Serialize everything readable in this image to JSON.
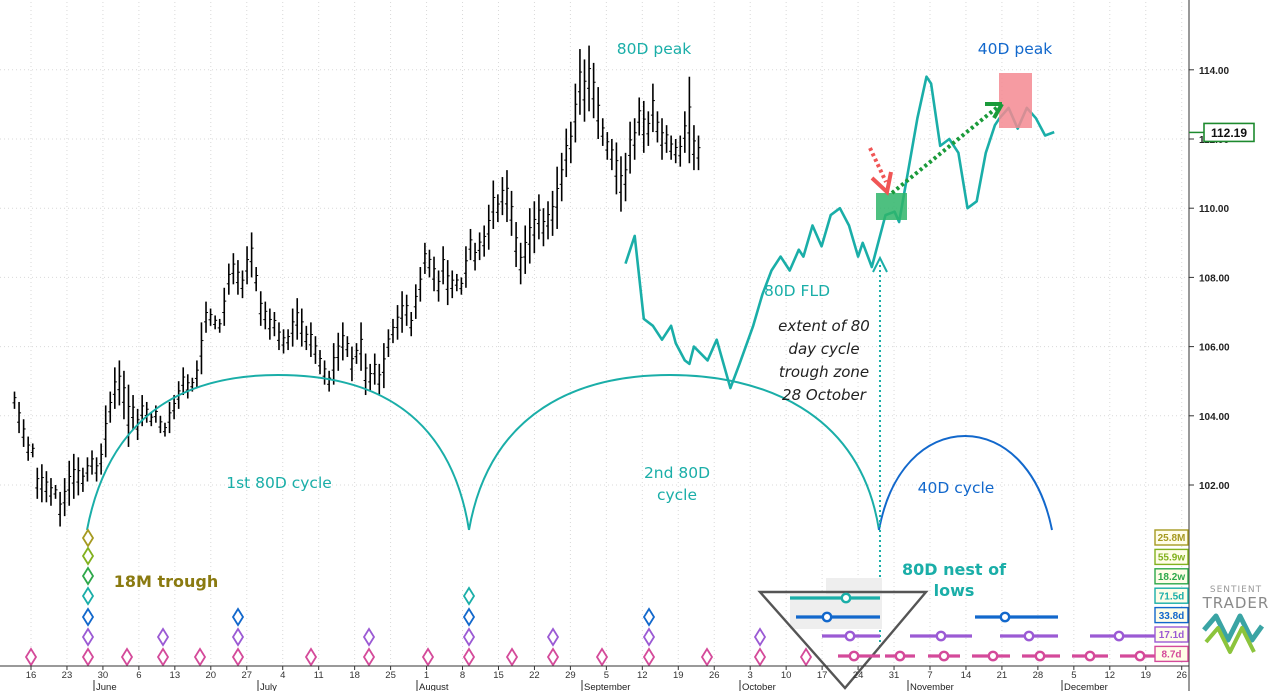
{
  "chart_data": {
    "type": "ohlc",
    "title": "",
    "xlabel": "",
    "ylabel": "",
    "ylim": [
      99,
      116
    ],
    "y_ticks": [
      "102.00",
      "104.00",
      "106.00",
      "108.00",
      "110.00",
      "112.00",
      "114.00"
    ],
    "last_price": "112.19",
    "date_ticks": [
      "16",
      "23",
      "30",
      "6",
      "13",
      "20",
      "27",
      "4",
      "11",
      "18",
      "25",
      "1",
      "8",
      "15",
      "22",
      "29",
      "5",
      "12",
      "19",
      "26",
      "3",
      "10",
      "17",
      "24",
      "31",
      "7",
      "14",
      "21",
      "28",
      "5",
      "12",
      "19",
      "26"
    ],
    "month_labels": [
      "June",
      "July",
      "August",
      "September",
      "October",
      "November",
      "December"
    ],
    "price_bars": [
      [
        104.7,
        104.2
      ],
      [
        104.4,
        103.5
      ],
      [
        103.9,
        103.1
      ],
      [
        103.4,
        102.7
      ],
      [
        103.2,
        102.8
      ],
      [
        102.5,
        101.6
      ],
      [
        102.6,
        101.5
      ],
      [
        102.4,
        101.5
      ],
      [
        102.2,
        101.4
      ],
      [
        102.0,
        101.6
      ],
      [
        101.8,
        100.8
      ],
      [
        102.2,
        101.1
      ],
      [
        102.7,
        101.4
      ],
      [
        102.9,
        101.6
      ],
      [
        102.8,
        101.7
      ],
      [
        102.5,
        101.8
      ],
      [
        102.8,
        102.1
      ],
      [
        103.0,
        102.3
      ],
      [
        102.8,
        102.1
      ],
      [
        103.2,
        102.3
      ],
      [
        104.3,
        102.8
      ],
      [
        104.7,
        103.8
      ],
      [
        105.4,
        104.2
      ],
      [
        105.6,
        104.3
      ],
      [
        105.3,
        103.9
      ],
      [
        104.9,
        103.1
      ],
      [
        104.6,
        103.6
      ],
      [
        104.2,
        103.3
      ],
      [
        104.6,
        103.7
      ],
      [
        104.4,
        103.8
      ],
      [
        104.1,
        103.7
      ],
      [
        104.3,
        103.8
      ],
      [
        104.0,
        103.5
      ],
      [
        103.8,
        103.4
      ],
      [
        104.4,
        103.5
      ],
      [
        104.6,
        103.9
      ],
      [
        105.0,
        104.2
      ],
      [
        105.4,
        104.6
      ],
      [
        105.2,
        104.5
      ],
      [
        105.1,
        104.7
      ],
      [
        105.6,
        104.8
      ],
      [
        106.7,
        105.2
      ],
      [
        107.3,
        106.4
      ],
      [
        107.1,
        106.6
      ],
      [
        106.9,
        106.5
      ],
      [
        106.8,
        106.4
      ],
      [
        107.7,
        106.6
      ],
      [
        108.4,
        107.5
      ],
      [
        108.7,
        107.8
      ],
      [
        108.5,
        107.5
      ],
      [
        108.2,
        107.4
      ],
      [
        108.9,
        107.8
      ],
      [
        109.3,
        108.0
      ],
      [
        108.3,
        107.6
      ],
      [
        107.6,
        106.6
      ],
      [
        107.3,
        106.5
      ],
      [
        107.1,
        106.2
      ],
      [
        107.0,
        106.3
      ],
      [
        106.7,
        105.9
      ],
      [
        106.5,
        105.8
      ],
      [
        106.5,
        105.9
      ],
      [
        107.1,
        106.0
      ],
      [
        107.4,
        106.2
      ],
      [
        107.1,
        106.0
      ],
      [
        106.6,
        105.9
      ],
      [
        106.7,
        105.7
      ],
      [
        106.3,
        105.5
      ],
      [
        105.9,
        105.2
      ],
      [
        105.6,
        104.9
      ],
      [
        105.3,
        104.7
      ],
      [
        106.1,
        104.9
      ],
      [
        106.4,
        105.3
      ],
      [
        106.7,
        105.6
      ],
      [
        106.3,
        105.7
      ],
      [
        106.0,
        105.0
      ],
      [
        106.1,
        105.5
      ],
      [
        106.7,
        105.3
      ],
      [
        105.8,
        104.6
      ],
      [
        105.5,
        104.7
      ],
      [
        105.8,
        104.9
      ],
      [
        105.5,
        104.6
      ],
      [
        106.1,
        104.8
      ],
      [
        106.5,
        105.7
      ],
      [
        106.8,
        106.1
      ],
      [
        107.2,
        106.2
      ],
      [
        107.6,
        106.4
      ],
      [
        107.5,
        106.6
      ],
      [
        107.0,
        106.3
      ],
      [
        107.8,
        106.8
      ],
      [
        108.3,
        107.3
      ],
      [
        109.0,
        108.1
      ],
      [
        108.8,
        108.0
      ],
      [
        108.6,
        107.6
      ],
      [
        108.2,
        107.3
      ],
      [
        108.9,
        107.8
      ],
      [
        108.5,
        107.2
      ],
      [
        108.2,
        107.4
      ],
      [
        108.1,
        107.6
      ],
      [
        108.0,
        107.5
      ],
      [
        108.9,
        107.7
      ],
      [
        109.4,
        108.5
      ],
      [
        109.0,
        108.2
      ],
      [
        109.3,
        108.5
      ],
      [
        109.5,
        108.6
      ],
      [
        110.1,
        108.8
      ],
      [
        110.8,
        109.4
      ],
      [
        110.4,
        109.6
      ],
      [
        110.9,
        109.8
      ],
      [
        111.1,
        109.6
      ],
      [
        110.5,
        109.2
      ],
      [
        109.6,
        108.3
      ],
      [
        109.0,
        107.8
      ],
      [
        109.5,
        108.1
      ],
      [
        110.0,
        108.4
      ],
      [
        110.2,
        108.7
      ],
      [
        110.4,
        109.1
      ],
      [
        110.0,
        108.9
      ],
      [
        110.2,
        109.1
      ],
      [
        110.5,
        109.2
      ],
      [
        111.2,
        109.4
      ],
      [
        111.6,
        110.2
      ],
      [
        112.3,
        110.9
      ],
      [
        112.5,
        111.3
      ],
      [
        113.6,
        111.9
      ],
      [
        114.6,
        112.7
      ],
      [
        114.3,
        112.5
      ],
      [
        114.7,
        112.8
      ],
      [
        114.2,
        112.6
      ],
      [
        113.5,
        112.0
      ],
      [
        112.6,
        111.8
      ],
      [
        112.2,
        111.4
      ],
      [
        112.0,
        111.1
      ],
      [
        111.9,
        110.4
      ],
      [
        111.5,
        109.9
      ],
      [
        111.6,
        110.2
      ],
      [
        112.5,
        111.0
      ],
      [
        112.6,
        111.4
      ],
      [
        113.2,
        112.1
      ],
      [
        113.1,
        111.6
      ],
      [
        112.8,
        111.8
      ],
      [
        113.6,
        112.2
      ],
      [
        112.8,
        111.9
      ],
      [
        112.6,
        111.4
      ],
      [
        112.4,
        111.6
      ],
      [
        112.1,
        111.4
      ],
      [
        112.0,
        111.3
      ],
      [
        112.1,
        111.2
      ],
      [
        112.8,
        111.6
      ],
      [
        113.8,
        111.3
      ],
      [
        112.4,
        111.1
      ],
      [
        112.1,
        111.1
      ]
    ],
    "series": [
      {
        "name": "80D FLD",
        "color": "#1aaea8",
        "points": [
          [
            134,
            108.4
          ],
          [
            136,
            109.2
          ],
          [
            138,
            106.8
          ],
          [
            140,
            106.6
          ],
          [
            142,
            106.2
          ],
          [
            144,
            106.6
          ],
          [
            145,
            106.1
          ],
          [
            147,
            105.6
          ],
          [
            148,
            105.5
          ],
          [
            149,
            106.0
          ],
          [
            152,
            105.6
          ],
          [
            154,
            106.2
          ],
          [
            157,
            104.8
          ],
          [
            159,
            105.5
          ],
          [
            162,
            106.6
          ],
          [
            164,
            107.5
          ],
          [
            166,
            108.2
          ],
          [
            168,
            108.6
          ],
          [
            170,
            108.2
          ],
          [
            172,
            108.8
          ],
          [
            173,
            108.6
          ],
          [
            175,
            109.5
          ],
          [
            177,
            108.9
          ],
          [
            179,
            109.8
          ],
          [
            181,
            110.0
          ],
          [
            183,
            109.5
          ],
          [
            185,
            108.6
          ],
          [
            186,
            109.0
          ],
          [
            188,
            108.3
          ],
          [
            191,
            109.8
          ],
          [
            193,
            109.9
          ],
          [
            194,
            109.6
          ],
          [
            196,
            111.1
          ],
          [
            198,
            112.6
          ],
          [
            200,
            113.8
          ],
          [
            201,
            113.6
          ],
          [
            203,
            111.8
          ],
          [
            205,
            112.0
          ],
          [
            207,
            111.6
          ],
          [
            209,
            110.0
          ],
          [
            211,
            110.2
          ],
          [
            213,
            111.6
          ],
          [
            215,
            112.4
          ],
          [
            216,
            112.6
          ],
          [
            218,
            112.9
          ],
          [
            220,
            112.3
          ],
          [
            222,
            112.9
          ],
          [
            224,
            112.6
          ],
          [
            226,
            112.1
          ],
          [
            228,
            112.2
          ]
        ]
      }
    ],
    "cycles": [
      {
        "label": "1st 80D cycle",
        "color": "#1aaea8"
      },
      {
        "label": "2nd 80D cycle",
        "color": "#1aaea8"
      },
      {
        "label": "40D cycle",
        "color": "#1268cc"
      }
    ],
    "cycle_periods": [
      {
        "label": "25.8M",
        "color": "#a69a21"
      },
      {
        "label": "55.9w",
        "color": "#82b11e"
      },
      {
        "label": "18.2w",
        "color": "#2ea84a"
      },
      {
        "label": "71.5d",
        "color": "#1aaea8"
      },
      {
        "label": "33.8d",
        "color": "#1268cc"
      },
      {
        "label": "17.1d",
        "color": "#9b5ad4"
      },
      {
        "label": "8.7d",
        "color": "#d44a9a"
      }
    ],
    "annotations": {
      "peak_80d": "80D peak",
      "peak_40d": "40D peak",
      "fld": "80D FLD",
      "extent_note": [
        "extent of 80",
        "day cycle",
        "trough zone",
        "28 October"
      ],
      "trough_18m": "18M trough",
      "nest": [
        "80D nest of",
        "lows"
      ],
      "cycle1": "1st 80D cycle",
      "cycle2": [
        "2nd 80D",
        "cycle"
      ],
      "cycle40": "40D cycle"
    },
    "logo": [
      "SENTIENT",
      "TRADER"
    ]
  }
}
